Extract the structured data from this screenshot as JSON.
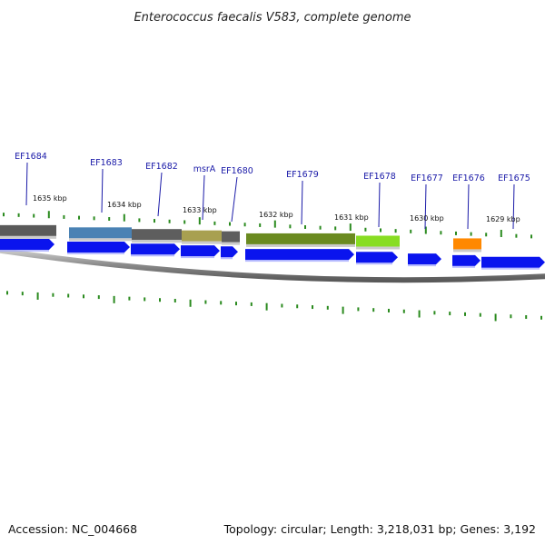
{
  "title": "Enterococcus faecalis V583, complete genome",
  "footer": {
    "accession": "Accession: NC_004668",
    "summary": "Topology: circular; Length: 3,218,031 bp; Genes: 3,192"
  },
  "colors": {
    "backbone": "#8a8a8a",
    "cds": "#0a14ee",
    "gene_label": "#1a1aa8",
    "tick": "#2a8a1e"
  },
  "kbp_ticks": [
    "1635 kbp",
    "1634 kbp",
    "1633 kbp",
    "1632 kbp",
    "1631 kbp",
    "1630 kbp",
    "1629 kbp"
  ],
  "gene_labels": [
    "EF1684",
    "EF1683",
    "EF1682",
    "msrA",
    "EF1680",
    "EF1679",
    "EF1678",
    "EF1677",
    "EF1676",
    "EF1675"
  ],
  "feature_colors": [
    "#5a5a5a",
    "#4a82b4",
    "#5e5e5e",
    "#a8a050",
    "#5e5e5e",
    "#6a8a20",
    "#88dd22",
    "#ff8800"
  ]
}
